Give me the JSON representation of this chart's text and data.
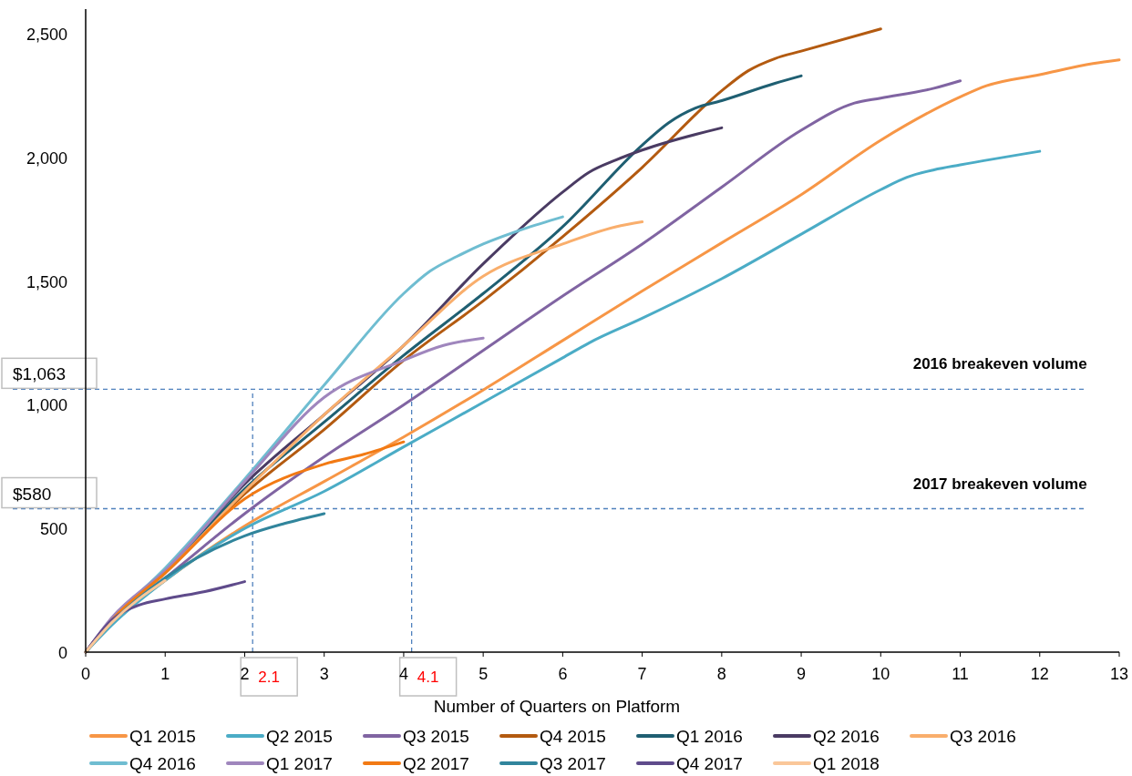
{
  "chart_data": {
    "type": "line",
    "xlabel": "Number of Quarters on Platform",
    "xlim": [
      0,
      13
    ],
    "xticks": [
      0,
      1,
      2,
      3,
      4,
      5,
      6,
      7,
      8,
      9,
      10,
      11,
      12,
      13
    ],
    "ylim": [
      0,
      2600
    ],
    "yticks": [
      0,
      {
        "value": 500,
        "label": "500"
      },
      {
        "value": 1000,
        "label": "1,000"
      },
      {
        "value": 1500,
        "label": "1,500"
      },
      {
        "value": 2000,
        "label": "2,000"
      },
      {
        "value": 2500,
        "label": "2,500"
      }
    ],
    "grid": false,
    "legend": "bottom",
    "marker": "none",
    "line_style": "solid",
    "series": [
      {
        "name": "Q1 2015",
        "color": "#f79646",
        "x": [
          0,
          0.33,
          1,
          2,
          3,
          4,
          5,
          6,
          7,
          8,
          9,
          10,
          11,
          11.33,
          12,
          12.67,
          13
        ],
        "values": [
          0,
          120,
          290,
          510,
          690,
          870,
          1060,
          1260,
          1460,
          1655,
          1850,
          2070,
          2245,
          2290,
          2335,
          2380,
          2395
        ]
      },
      {
        "name": "Q2 2015",
        "color": "#4bacc6",
        "x": [
          0,
          0.33,
          1,
          2,
          3,
          4,
          5,
          6,
          6.33,
          7,
          8,
          9,
          10,
          10.33,
          10.67,
          11,
          12
        ],
        "values": [
          0,
          110,
          290,
          500,
          650,
          830,
          1010,
          1190,
          1250,
          1350,
          1510,
          1690,
          1870,
          1920,
          1950,
          1970,
          2025
        ]
      },
      {
        "name": "Q3 2015",
        "color": "#8064a2",
        "x": [
          0,
          0.33,
          1,
          2,
          3,
          4,
          5,
          6,
          7,
          8,
          9,
          9.67,
          10,
          10.67,
          11
        ],
        "values": [
          0,
          130,
          300,
          560,
          790,
          1000,
          1220,
          1440,
          1650,
          1880,
          2110,
          2220,
          2240,
          2280,
          2310
        ]
      },
      {
        "name": "Q4 2015",
        "color": "#b35a10",
        "x": [
          0,
          0.33,
          1,
          2,
          3,
          4,
          5,
          6,
          7,
          8,
          8.33,
          8.67,
          9,
          10
        ],
        "values": [
          0,
          130,
          320,
          640,
          900,
          1180,
          1420,
          1680,
          1960,
          2270,
          2350,
          2400,
          2430,
          2520
        ]
      },
      {
        "name": "Q1 2016",
        "color": "#1f5f72",
        "x": [
          0,
          0.33,
          1,
          2,
          3,
          4,
          5,
          6,
          7,
          7.33,
          7.67,
          8,
          8.67,
          9
        ],
        "values": [
          0,
          130,
          330,
          660,
          930,
          1200,
          1450,
          1720,
          2050,
          2140,
          2200,
          2230,
          2300,
          2330
        ]
      },
      {
        "name": "Q2 2016",
        "color": "#4a3b63",
        "x": [
          0,
          0.33,
          1,
          2,
          3,
          4,
          5,
          6,
          6.33,
          6.67,
          7,
          8
        ],
        "values": [
          0,
          130,
          330,
          680,
          960,
          1240,
          1570,
          1860,
          1940,
          1990,
          2030,
          2120
        ]
      },
      {
        "name": "Q3 2016",
        "color": "#f9ae6c",
        "x": [
          0,
          0.33,
          1,
          2,
          3,
          4,
          5,
          6,
          6.67,
          7
        ],
        "values": [
          0,
          130,
          320,
          650,
          960,
          1240,
          1520,
          1650,
          1720,
          1740
        ]
      },
      {
        "name": "Q4 2016",
        "color": "#6fbdd1",
        "x": [
          0,
          0.33,
          1,
          2,
          3,
          4,
          4.33,
          4.67,
          5,
          5.5,
          6
        ],
        "values": [
          0,
          130,
          340,
          700,
          1080,
          1450,
          1540,
          1600,
          1650,
          1710,
          1760
        ]
      },
      {
        "name": "Q1 2017",
        "color": "#9f86bd",
        "x": [
          0,
          0.33,
          1,
          2,
          3,
          4,
          4.5,
          5
        ],
        "values": [
          0,
          140,
          330,
          690,
          1030,
          1180,
          1240,
          1270
        ]
      },
      {
        "name": "Q2 2017",
        "color": "#f27a14",
        "x": [
          0,
          0.33,
          1,
          2,
          3,
          3.5,
          4
        ],
        "values": [
          0,
          130,
          320,
          620,
          760,
          800,
          850
        ]
      },
      {
        "name": "Q3 2017",
        "color": "#31859c",
        "x": [
          0,
          0.33,
          1,
          2,
          2.5,
          3
        ],
        "values": [
          0,
          120,
          300,
          470,
          520,
          560
        ]
      },
      {
        "name": "Q4 2017",
        "color": "#5f4b8b",
        "x": [
          0,
          0.33,
          0.67,
          1,
          1.5,
          2
        ],
        "values": [
          0,
          130,
          190,
          215,
          245,
          285
        ]
      },
      {
        "name": "Q1 2018",
        "color": "#fac799",
        "x": [
          0,
          0.33,
          1
        ],
        "values": [
          0,
          120,
          290
        ]
      }
    ],
    "ref_lines": [
      {
        "axis": "y",
        "value": 1063,
        "label": "$1,063",
        "color": "#4f81bd",
        "line_style": "dashed"
      },
      {
        "axis": "y",
        "value": 580,
        "label": "$580",
        "color": "#4f81bd",
        "line_style": "dashed"
      },
      {
        "axis": "x",
        "value": 2.1,
        "label": "2.1",
        "color": "#4f81bd",
        "line_style": "dashed"
      },
      {
        "axis": "x",
        "value": 4.1,
        "label": "4.1",
        "color": "#4f81bd",
        "line_style": "dashed"
      }
    ],
    "annotations": [
      {
        "text": "2016 breakeven volume",
        "x": 11.5,
        "y": 1063
      },
      {
        "text": "2017 breakeven volume",
        "x": 11.5,
        "y": 580
      }
    ]
  }
}
